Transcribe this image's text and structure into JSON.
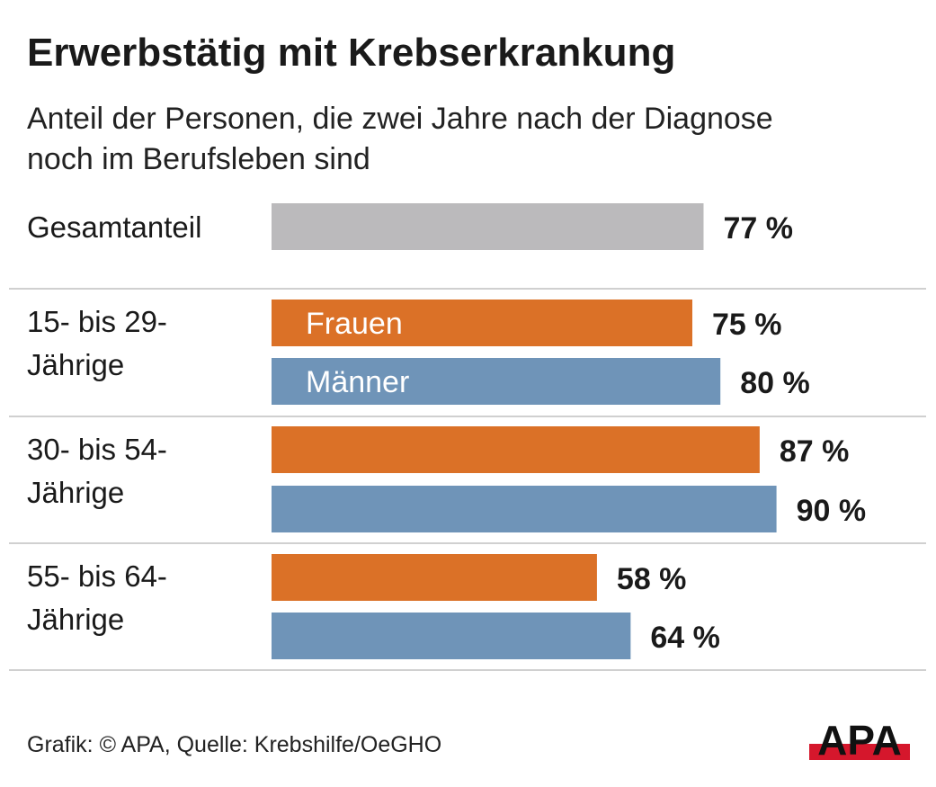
{
  "title": "Erwerbstätig mit Krebserkrankung",
  "subtitle": "Anteil der Personen, die zwei Jahre nach der Diagnose noch im Berufsleben sind",
  "source": "Grafik: © APA, Quelle: Krebshilfe/OeGHO",
  "logo_text": "APA",
  "colors": {
    "total": "#bbbabc",
    "frauen": "#db7127",
    "maenner": "#6f94b8",
    "separator": "#d0d0d0",
    "logo_bg": "#d5172c",
    "logo_fg": "#111111"
  },
  "chart_data": {
    "type": "bar",
    "orientation": "horizontal",
    "xlim": [
      0,
      100
    ],
    "unit": "%",
    "categories": [
      "Gesamtanteil",
      "15- bis 29-Jährige",
      "30- bis 54-Jährige",
      "55- bis 64-Jährige"
    ],
    "category_labels": [
      [
        "Gesamtanteil"
      ],
      [
        "15- bis 29-",
        "Jährige"
      ],
      [
        "30- bis 54-",
        "Jährige"
      ],
      [
        "55- bis 64-",
        "Jährige"
      ]
    ],
    "series": [
      {
        "name": "Gesamtanteil",
        "values": [
          77,
          null,
          null,
          null
        ]
      },
      {
        "name": "Frauen",
        "values": [
          null,
          75,
          87,
          58
        ]
      },
      {
        "name": "Männer",
        "values": [
          null,
          80,
          90,
          64
        ]
      }
    ],
    "value_labels": {
      "Gesamtanteil": [
        "77 %",
        null,
        null,
        null
      ],
      "Frauen": [
        null,
        "75 %",
        "87 %",
        "58 %"
      ],
      "Männer": [
        null,
        "80 %",
        "90 %",
        "64 %"
      ]
    },
    "inline_series_labels": [
      "Frauen",
      "Männer"
    ]
  }
}
